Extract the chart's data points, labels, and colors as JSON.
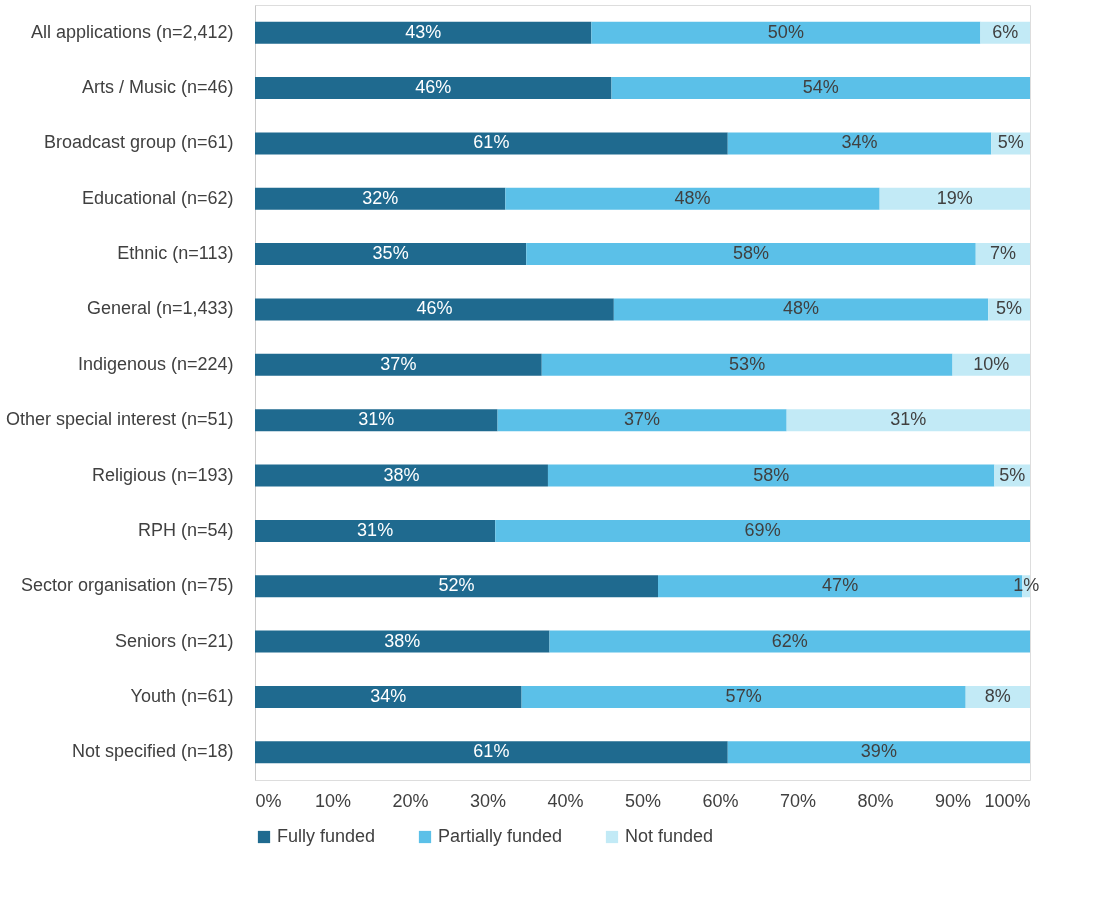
{
  "chart_data": {
    "type": "bar",
    "orientation": "horizontal",
    "stacked": true,
    "grid": false,
    "legend": "bottom",
    "categories": [
      "All applications (n=2,412)",
      "Arts / Music (n=46)",
      "Broadcast group (n=61)",
      "Educational (n=62)",
      "Ethnic (n=113)",
      "General (n=1,433)",
      "Indigenous (n=224)",
      "Other special interest (n=51)",
      "Religious (n=193)",
      "RPH (n=54)",
      "Sector organisation (n=75)",
      "Seniors (n=21)",
      "Youth (n=61)",
      "Not specified  (n=18)"
    ],
    "series": [
      {
        "name": "Fully funded",
        "color": "#1f6a8f",
        "values": [
          43.4,
          46,
          61,
          32.3,
          35,
          46.3,
          37,
          31.3,
          37.8,
          31,
          52,
          38,
          34.4,
          61
        ],
        "value_labels": [
          "43%",
          "46%",
          "61%",
          "32%",
          "35%",
          "46%",
          "37%",
          "31%",
          "38%",
          "31%",
          "52%",
          "38%",
          "34%",
          "61%"
        ]
      },
      {
        "name": "Partially funded",
        "color": "#5bc0e8",
        "values": [
          50.2,
          54,
          34,
          48.3,
          58,
          48.3,
          53,
          37.3,
          57.6,
          69,
          47,
          62,
          57.3,
          39
        ],
        "value_labels": [
          "50%",
          "54%",
          "34%",
          "48%",
          "58%",
          "48%",
          "53%",
          "37%",
          "58%",
          "69%",
          "47%",
          "62%",
          "57%",
          "39%"
        ]
      },
      {
        "name": "Not funded",
        "color": "#c2eaf6",
        "values": [
          6.4,
          null,
          5,
          19.4,
          7,
          5.4,
          10,
          31.4,
          4.6,
          null,
          1,
          null,
          8.3,
          null
        ],
        "value_labels": [
          "6%",
          null,
          "5%",
          "19%",
          "7%",
          "5%",
          "10%",
          "31%",
          "5%",
          null,
          "1%",
          null,
          "8%",
          null
        ]
      }
    ],
    "xlim": [
      0,
      100
    ],
    "xticks": [
      {
        "value": 0,
        "label": "0%"
      },
      {
        "value": 10,
        "label": "10%"
      },
      {
        "value": 20,
        "label": "20%"
      },
      {
        "value": 30,
        "label": "30%"
      },
      {
        "value": 40,
        "label": "40%"
      },
      {
        "value": 50,
        "label": "50%"
      },
      {
        "value": 60,
        "label": "60%"
      },
      {
        "value": 70,
        "label": "70%"
      },
      {
        "value": 80,
        "label": "80%"
      },
      {
        "value": 90,
        "label": "90%"
      },
      {
        "value": 100,
        "label": "100%"
      }
    ]
  }
}
